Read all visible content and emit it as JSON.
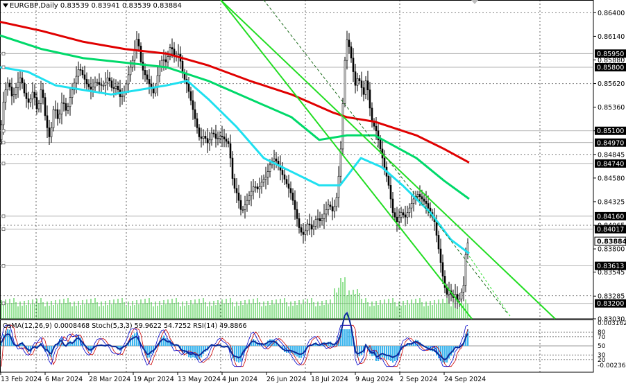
{
  "header": {
    "symbol": "EURGBP,Daily",
    "ohlc": "0.83539 0.83941 0.83539 0.83884",
    "osc_title": "OsMA(12,26,9) 0.0008468",
    "stoch_title": "Stoch(5,3,3) 59.9622 54.7252",
    "rsi_title": "RSI(14) 49.8866"
  },
  "colors": {
    "ema200": "#e00000",
    "ema144": "#00d96a",
    "ema50": "#1fe0f0",
    "channel": "#22dd22",
    "candle": "#000000",
    "volume": "#2ec52e",
    "osma": "#3eb6ee",
    "stoch_main": "#0000cc",
    "stoch_signal": "#cc0000",
    "rsi": "#0b2a9b",
    "grid": "#000000",
    "price_label_bg": "#000000"
  },
  "chart_data": {
    "type": "candlestick",
    "title": "EURGBP,Daily",
    "ylim": [
      0.8303,
      0.8654
    ],
    "y_ticks": [
      0.864,
      0.8614,
      0.8588,
      0.8562,
      0.8536,
      0.851,
      0.8484,
      0.8458,
      0.8432,
      0.8406,
      0.838,
      0.83545,
      0.8328,
      0.8303
    ],
    "y_tick_labels": [
      "0.86400",
      "0.86140",
      "0.85880",
      "0.85620",
      "0.85360",
      "0.85100",
      "0.84845",
      "0.84580",
      "0.84325",
      "0.84065",
      "0.83800",
      "0.83545",
      "0.83285",
      "0.83030"
    ],
    "level_labels": [
      {
        "value": 0.8595,
        "label": "0.85950"
      },
      {
        "value": 0.858,
        "label": "0.85800"
      },
      {
        "value": 0.851,
        "label": "0.85100"
      },
      {
        "value": 0.8497,
        "label": "0.84970"
      },
      {
        "value": 0.8474,
        "label": "0.84740"
      },
      {
        "value": 0.8416,
        "label": "0.84160"
      },
      {
        "value": 0.84017,
        "label": "0.84017"
      },
      {
        "value": 0.83884,
        "label": "0.83884",
        "current": true
      },
      {
        "value": 0.83613,
        "label": "0.83613"
      },
      {
        "value": 0.832,
        "label": "0.83200"
      }
    ],
    "x_labels": [
      "13 Feb 2024",
      "6 Mar 2024",
      "28 Mar 2024",
      "19 Apr 2024",
      "13 May 2024",
      "4 Jun 2024",
      "26 Jun 2024",
      "18 Jul 2024",
      "9 Aug 2024",
      "2 Sep 2024",
      "24 Sep 2024"
    ],
    "price_path": [
      [
        0,
        0.85
      ],
      [
        6,
        0.855
      ],
      [
        12,
        0.8565
      ],
      [
        18,
        0.8545
      ],
      [
        24,
        0.856
      ],
      [
        30,
        0.857
      ],
      [
        36,
        0.8548
      ],
      [
        42,
        0.854
      ],
      [
        48,
        0.8555
      ],
      [
        54,
        0.853
      ],
      [
        60,
        0.856
      ],
      [
        66,
        0.852
      ],
      [
        72,
        0.85
      ],
      [
        78,
        0.854
      ],
      [
        84,
        0.852
      ],
      [
        90,
        0.8545
      ],
      [
        96,
        0.853
      ],
      [
        102,
        0.855
      ],
      [
        108,
        0.8565
      ],
      [
        114,
        0.858
      ],
      [
        120,
        0.857
      ],
      [
        126,
        0.856
      ],
      [
        132,
        0.8555
      ],
      [
        138,
        0.8565
      ],
      [
        144,
        0.856
      ],
      [
        150,
        0.856
      ],
      [
        156,
        0.857
      ],
      [
        162,
        0.8555
      ],
      [
        168,
        0.856
      ],
      [
        174,
        0.8545
      ],
      [
        180,
        0.8555
      ],
      [
        186,
        0.8575
      ],
      [
        192,
        0.859
      ],
      [
        198,
        0.8615
      ],
      [
        204,
        0.858
      ],
      [
        210,
        0.857
      ],
      [
        216,
        0.856
      ],
      [
        222,
        0.855
      ],
      [
        228,
        0.8575
      ],
      [
        234,
        0.859
      ],
      [
        240,
        0.8585
      ],
      [
        246,
        0.8605
      ],
      [
        252,
        0.859
      ],
      [
        258,
        0.8595
      ],
      [
        264,
        0.857
      ],
      [
        270,
        0.856
      ],
      [
        276,
        0.854
      ],
      [
        282,
        0.852
      ],
      [
        288,
        0.85
      ],
      [
        294,
        0.8505
      ],
      [
        300,
        0.8495
      ],
      [
        306,
        0.851
      ],
      [
        312,
        0.85
      ],
      [
        318,
        0.8505
      ],
      [
        324,
        0.85
      ],
      [
        330,
        0.8495
      ],
      [
        336,
        0.845
      ],
      [
        342,
        0.844
      ],
      [
        348,
        0.842
      ],
      [
        354,
        0.843
      ],
      [
        360,
        0.844
      ],
      [
        366,
        0.845
      ],
      [
        372,
        0.8445
      ],
      [
        378,
        0.8455
      ],
      [
        384,
        0.846
      ],
      [
        390,
        0.8475
      ],
      [
        396,
        0.848
      ],
      [
        402,
        0.847
      ],
      [
        408,
        0.846
      ],
      [
        414,
        0.845
      ],
      [
        420,
        0.844
      ],
      [
        426,
        0.842
      ],
      [
        432,
        0.84
      ],
      [
        438,
        0.8395
      ],
      [
        444,
        0.841
      ],
      [
        450,
        0.84
      ],
      [
        456,
        0.8415
      ],
      [
        462,
        0.841
      ],
      [
        468,
        0.842
      ],
      [
        474,
        0.843
      ],
      [
        480,
        0.842
      ],
      [
        486,
        0.844
      ],
      [
        492,
        0.85
      ],
      [
        496,
        0.858
      ],
      [
        500,
        0.861
      ],
      [
        504,
        0.86
      ],
      [
        508,
        0.858
      ],
      [
        512,
        0.856
      ],
      [
        516,
        0.857
      ],
      [
        520,
        0.856
      ],
      [
        524,
        0.855
      ],
      [
        528,
        0.857
      ],
      [
        532,
        0.854
      ],
      [
        536,
        0.852
      ],
      [
        542,
        0.851
      ],
      [
        548,
        0.849
      ],
      [
        554,
        0.847
      ],
      [
        560,
        0.845
      ],
      [
        566,
        0.842
      ],
      [
        572,
        0.841
      ],
      [
        578,
        0.842
      ],
      [
        584,
        0.8415
      ],
      [
        590,
        0.8425
      ],
      [
        596,
        0.8435
      ],
      [
        602,
        0.844
      ],
      [
        608,
        0.8435
      ],
      [
        614,
        0.843
      ],
      [
        620,
        0.842
      ],
      [
        626,
        0.841
      ],
      [
        630,
        0.839
      ],
      [
        636,
        0.836
      ],
      [
        640,
        0.834
      ],
      [
        644,
        0.833
      ],
      [
        648,
        0.8335
      ],
      [
        652,
        0.8325
      ],
      [
        656,
        0.833
      ],
      [
        660,
        0.832
      ],
      [
        664,
        0.833
      ],
      [
        668,
        0.834
      ],
      [
        672,
        0.8385
      ],
      [
        676,
        0.8388
      ]
    ],
    "series": [
      {
        "name": "ema200",
        "x": [
          0,
          60,
          120,
          180,
          240,
          300,
          360,
          420,
          480,
          500,
          540,
          600,
          640,
          676
        ],
        "values": [
          0.863,
          0.862,
          0.8608,
          0.86,
          0.8595,
          0.8582,
          0.8565,
          0.855,
          0.853,
          0.8525,
          0.852,
          0.8505,
          0.849,
          0.8475
        ]
      },
      {
        "name": "ema144",
        "x": [
          0,
          60,
          120,
          180,
          240,
          300,
          360,
          420,
          460,
          500,
          540,
          600,
          640,
          676
        ],
        "values": [
          0.8615,
          0.86,
          0.859,
          0.8585,
          0.858,
          0.8565,
          0.8545,
          0.8525,
          0.85,
          0.8505,
          0.8505,
          0.848,
          0.8455,
          0.8435
        ]
      },
      {
        "name": "ema50",
        "x": [
          0,
          40,
          80,
          120,
          160,
          200,
          240,
          270,
          300,
          340,
          380,
          420,
          460,
          490,
          520,
          550,
          580,
          620,
          650,
          676
        ],
        "values": [
          0.858,
          0.8575,
          0.856,
          0.8555,
          0.855,
          0.8555,
          0.856,
          0.8565,
          0.8545,
          0.8515,
          0.848,
          0.8465,
          0.845,
          0.845,
          0.848,
          0.847,
          0.845,
          0.842,
          0.839,
          0.8375
        ]
      }
    ],
    "channel_lines": [
      {
        "from": [
          318,
          0.8654
        ],
        "to": [
          800,
          0.8303
        ],
        "style": "solid"
      },
      {
        "from": [
          318,
          0.8654
        ],
        "to": [
          680,
          0.8303
        ],
        "style": "solid"
      },
      {
        "from": [
          380,
          0.8654
        ],
        "to": [
          730,
          0.831
        ],
        "style": "dashed"
      }
    ],
    "volume": "bars along the bottom of the price panel",
    "indicators": [
      "OsMA(12,26,9)",
      "Stoch(5,3,3)",
      "RSI(14)"
    ],
    "osc_ticks": [
      {
        "value": 0.0031625,
        "label": "0.0031625"
      },
      {
        "value": 80,
        "label": "80"
      },
      {
        "value": 70,
        "label": "70"
      },
      {
        "value": 50,
        "label": "50"
      },
      {
        "value": 30,
        "label": "30"
      },
      {
        "value": 20,
        "label": "20"
      },
      {
        "value": -0.002364,
        "label": "-0.002364"
      }
    ]
  }
}
